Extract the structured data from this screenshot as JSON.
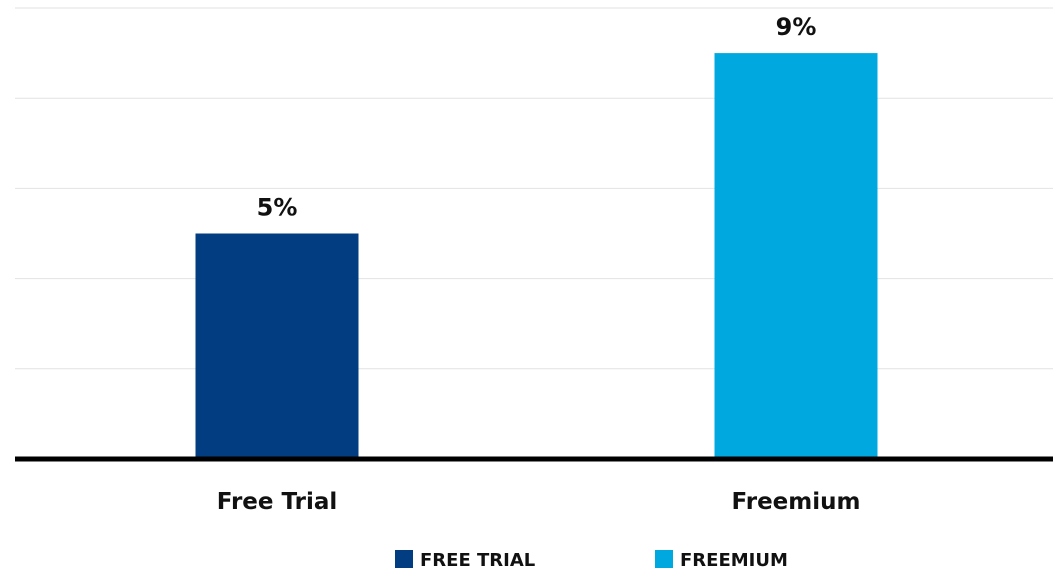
{
  "chart_data": {
    "type": "bar",
    "categories": [
      "Free Trial",
      "Freemium"
    ],
    "values": [
      5,
      9
    ],
    "data_labels": [
      "5%",
      "9%"
    ],
    "colors": [
      "#013d80",
      "#00a8e0"
    ],
    "ylim": [
      0,
      10
    ],
    "grid": true,
    "legend": {
      "position": "bottom",
      "entries": [
        {
          "label": "FREE TRIAL",
          "color": "#013d80"
        },
        {
          "label": "FREEMIUM",
          "color": "#00a8e0"
        }
      ]
    }
  }
}
